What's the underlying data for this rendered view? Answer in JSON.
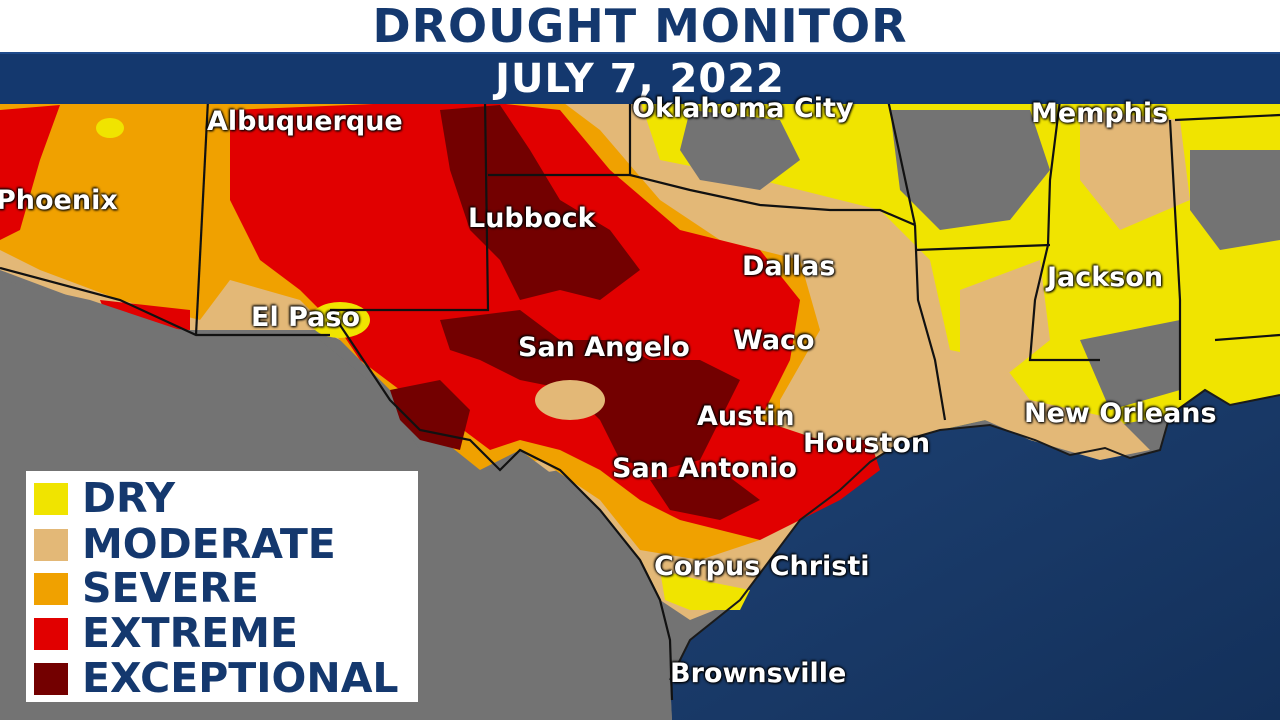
{
  "header": {
    "title": "DROUGHT MONITOR",
    "date": "JULY 7, 2022"
  },
  "cities": [
    {
      "name": "Oklahoma City"
    },
    {
      "name": "Memphis"
    },
    {
      "name": "Albuquerque"
    },
    {
      "name": "Phoenix"
    },
    {
      "name": "Lubbock"
    },
    {
      "name": "Dallas"
    },
    {
      "name": "Jackson"
    },
    {
      "name": "El Paso"
    },
    {
      "name": "San Angelo"
    },
    {
      "name": "Waco"
    },
    {
      "name": "Austin"
    },
    {
      "name": "New Orleans"
    },
    {
      "name": "Houston"
    },
    {
      "name": "San Antonio"
    },
    {
      "name": "Corpus Christi"
    },
    {
      "name": "Brownsville"
    }
  ],
  "legend": [
    {
      "label": "DRY",
      "color": "#f0e400"
    },
    {
      "label": "MODERATE",
      "color": "#e3b877"
    },
    {
      "label": "SEVERE",
      "color": "#f0a100"
    },
    {
      "label": "EXTREME",
      "color": "#e10000"
    },
    {
      "label": "EXCEPTIONAL",
      "color": "#730000"
    }
  ],
  "colors": {
    "land": "#707070",
    "ocean": "#1d3f6e",
    "border": "#111111"
  }
}
